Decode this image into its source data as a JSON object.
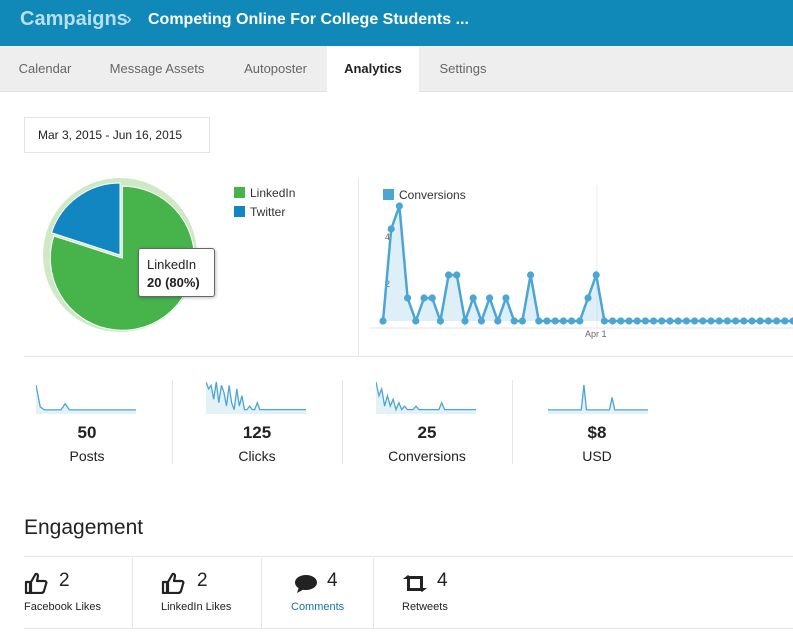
{
  "header": {
    "breadcrumb": "Campaigns",
    "separator": "›",
    "title": "Competing Online For College Students ..."
  },
  "tabs": [
    {
      "label": "Calendar",
      "active": false
    },
    {
      "label": "Message Assets",
      "active": false
    },
    {
      "label": "Autoposter",
      "active": false
    },
    {
      "label": "Analytics",
      "active": true
    },
    {
      "label": "Settings",
      "active": false
    }
  ],
  "date_range": "Mar 3, 2015 - Jun 16, 2015",
  "colors": {
    "header_bg": "#1189b8",
    "linkedin": "#46b34b",
    "twitter": "#1186c1",
    "line": "#4ba6d3"
  },
  "chart_data": [
    {
      "type": "pie",
      "categories": [
        "LinkedIn",
        "Twitter"
      ],
      "values": [
        20,
        5
      ],
      "tooltip": {
        "label": "LinkedIn",
        "value": "20 (80%)"
      }
    },
    {
      "type": "line",
      "series": [
        {
          "name": "Conversions",
          "values": [
            0,
            4,
            5,
            1,
            0,
            1,
            1,
            0,
            2,
            2,
            0,
            1,
            0,
            1,
            0,
            1,
            0,
            0,
            2,
            0,
            0,
            0,
            0,
            0,
            0,
            1,
            2,
            0,
            0,
            0,
            0,
            0,
            0,
            0,
            0,
            0,
            0,
            0,
            0,
            0,
            0,
            0,
            0,
            0,
            0,
            0,
            0,
            0,
            0,
            0,
            0,
            0,
            0,
            0,
            0,
            0,
            0,
            0,
            0
          ]
        }
      ],
      "ytick_labels": [
        "2",
        "4"
      ],
      "xtick_labels": [
        "Apr 1"
      ]
    }
  ],
  "stats": [
    {
      "value": "50",
      "label": "Posts",
      "spark": [
        9,
        2,
        1,
        1,
        1,
        1,
        1,
        3,
        1,
        1,
        1,
        1,
        1,
        1,
        1,
        1,
        1,
        1,
        1,
        1,
        1,
        1,
        1,
        1,
        1
      ]
    },
    {
      "value": "125",
      "label": "Clicks",
      "spark": [
        9,
        7,
        8,
        4,
        9,
        3,
        8,
        6,
        2,
        8,
        3,
        1,
        7,
        2,
        5,
        1,
        1,
        2,
        1,
        1,
        3,
        1,
        1,
        1,
        1,
        1,
        1,
        1,
        1,
        1,
        1,
        1,
        1,
        1,
        1,
        1,
        1,
        1,
        1,
        1
      ]
    },
    {
      "value": "25",
      "label": "Conversions",
      "spark": [
        9,
        5,
        7,
        2,
        5,
        2,
        4,
        1,
        3,
        1,
        2,
        1,
        1,
        1,
        2,
        1,
        1,
        1,
        1,
        1,
        1,
        1,
        1,
        3,
        1,
        1,
        1,
        1,
        1,
        1,
        1,
        1,
        1,
        1,
        1,
        1
      ]
    },
    {
      "value": "$8",
      "label": "USD",
      "spark": [
        1,
        1,
        1,
        1,
        1,
        1,
        1,
        1,
        1,
        1,
        1,
        1,
        1,
        1,
        9,
        1,
        1,
        1,
        1,
        1,
        1,
        1,
        1,
        1,
        1,
        5,
        1,
        1,
        1,
        1,
        1,
        1,
        1,
        1,
        1,
        1,
        1,
        1,
        1,
        1
      ]
    }
  ],
  "engagement": {
    "title": "Engagement",
    "items": [
      {
        "icon": "thumbs-up-icon",
        "count": "2",
        "label": "Facebook Likes"
      },
      {
        "icon": "thumbs-up-icon",
        "count": "2",
        "label": "LinkedIn Likes"
      },
      {
        "icon": "comment-icon",
        "count": "4",
        "label": "Comments"
      },
      {
        "icon": "retweet-icon",
        "count": "4",
        "label": "Retweets"
      }
    ]
  }
}
